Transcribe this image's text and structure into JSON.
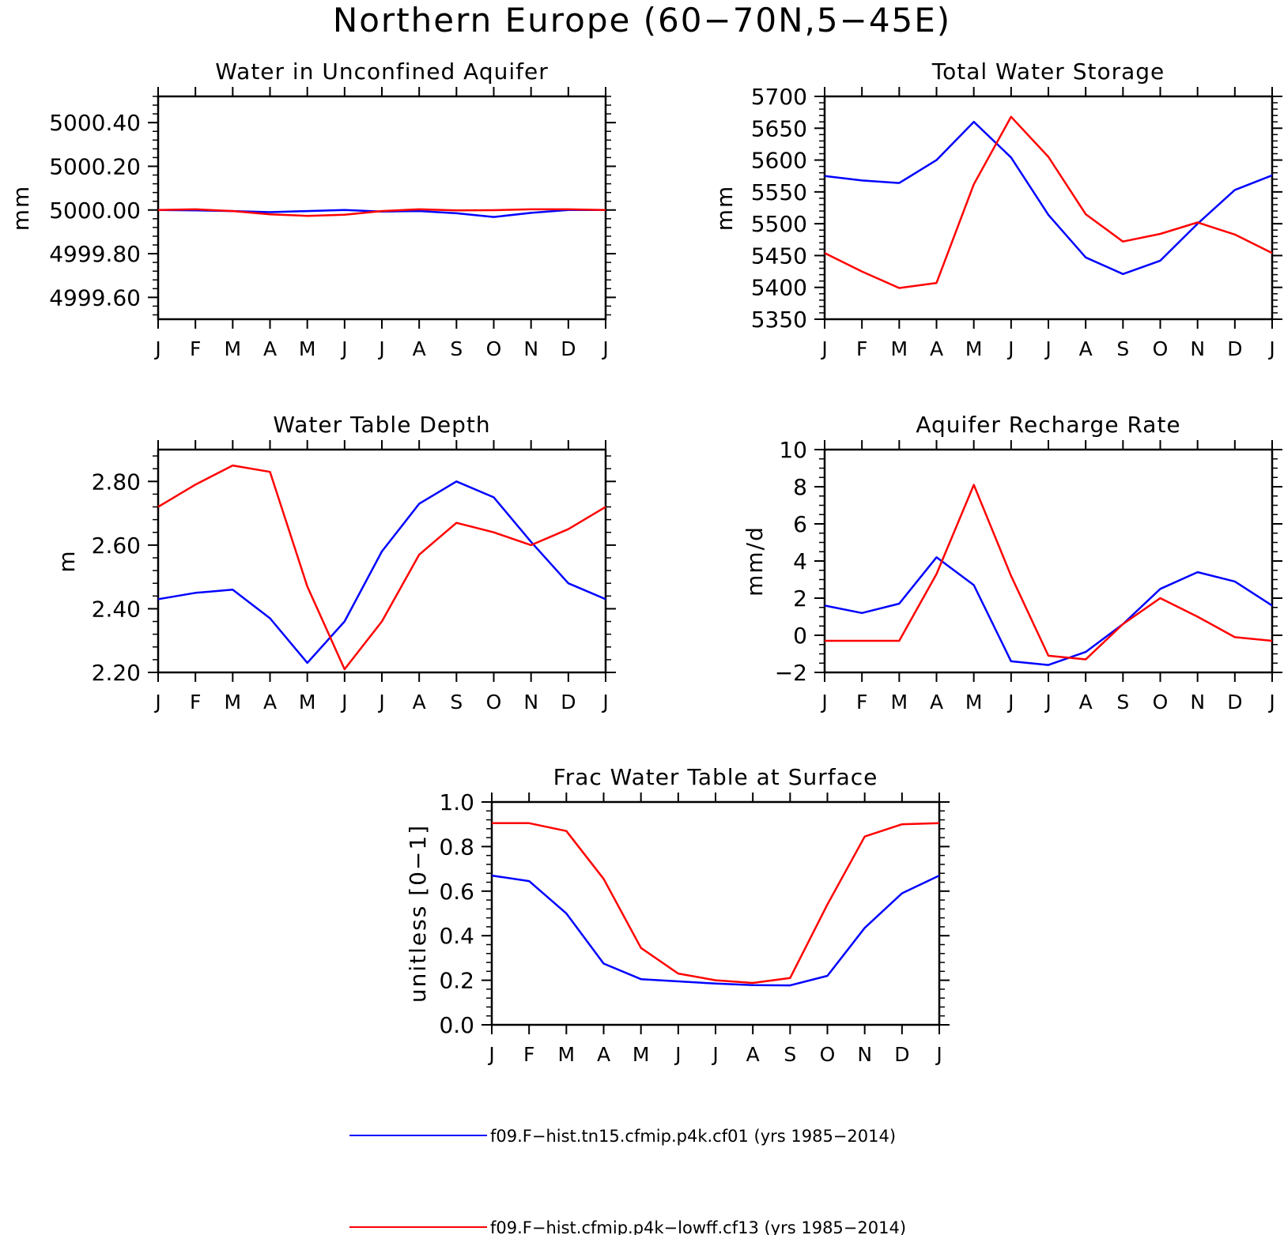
{
  "figure": {
    "title": "Northern Europe (60−70N,5−45E)"
  },
  "colors": {
    "series1": "#0000ff",
    "series2": "#ff0000",
    "axis": "#000000"
  },
  "legend": [
    {
      "label": "f09.F−hist.tn15.cfmip.p4k.cf01 (yrs 1985−2014)",
      "color": "#0000ff"
    },
    {
      "label": "f09.F−hist.cfmip.p4k−lowff.cf13 (yrs 1985−2014)",
      "color": "#ff0000"
    }
  ],
  "chart_data": [
    {
      "type": "line",
      "title": "Water in Unconfined Aquifer",
      "ylabel": "mm",
      "xlabel": "",
      "categories": [
        "J",
        "F",
        "M",
        "A",
        "M",
        "J",
        "J",
        "A",
        "S",
        "O",
        "N",
        "D",
        "J"
      ],
      "ylim": [
        4999.5,
        5000.52
      ],
      "yticks": [
        "5000.40",
        "5000.20",
        "5000.00",
        "4999.80",
        "4999.60"
      ],
      "ytick_values": [
        5000.4,
        5000.2,
        5000.0,
        4999.8,
        4999.6
      ],
      "series": [
        {
          "color": "#0000ff",
          "values": [
            5000.0,
            4999.998,
            4999.995,
            4999.99,
            4999.995,
            5000.0,
            4999.993,
            4999.995,
            4999.985,
            4999.968,
            4999.987,
            5000.0,
            5000.0
          ]
        },
        {
          "color": "#ff0000",
          "values": [
            5000.0,
            5000.003,
            4999.995,
            4999.98,
            4999.973,
            4999.978,
            4999.995,
            5000.003,
            4999.998,
            4999.999,
            5000.003,
            5000.003,
            5000.0
          ]
        }
      ]
    },
    {
      "type": "line",
      "title": "Total Water Storage",
      "ylabel": "mm",
      "xlabel": "",
      "categories": [
        "J",
        "F",
        "M",
        "A",
        "M",
        "J",
        "J",
        "A",
        "S",
        "O",
        "N",
        "D",
        "J"
      ],
      "ylim": [
        5350,
        5700
      ],
      "yticks": [
        "5700",
        "5650",
        "5600",
        "5550",
        "5500",
        "5450",
        "5400",
        "5350"
      ],
      "ytick_values": [
        5700,
        5650,
        5600,
        5550,
        5500,
        5450,
        5400,
        5350
      ],
      "series": [
        {
          "color": "#0000ff",
          "values": [
            5575,
            5568,
            5564,
            5600,
            5660,
            5604,
            5514,
            5447,
            5421,
            5442,
            5500,
            5553,
            5576
          ]
        },
        {
          "color": "#ff0000",
          "values": [
            5454,
            5425,
            5399,
            5407,
            5562,
            5668,
            5605,
            5515,
            5472,
            5484,
            5502,
            5483,
            5454
          ]
        }
      ]
    },
    {
      "type": "line",
      "title": "Water Table Depth",
      "ylabel": "m",
      "xlabel": "",
      "categories": [
        "J",
        "F",
        "M",
        "A",
        "M",
        "J",
        "J",
        "A",
        "S",
        "O",
        "N",
        "D",
        "J"
      ],
      "ylim": [
        2.2,
        2.9
      ],
      "yticks": [
        "2.80",
        "2.60",
        "2.40",
        "2.20"
      ],
      "ytick_values": [
        2.8,
        2.6,
        2.4,
        2.2
      ],
      "series": [
        {
          "color": "#0000ff",
          "values": [
            2.43,
            2.45,
            2.46,
            2.37,
            2.23,
            2.36,
            2.58,
            2.73,
            2.8,
            2.75,
            2.61,
            2.48,
            2.43
          ]
        },
        {
          "color": "#ff0000",
          "values": [
            2.72,
            2.79,
            2.85,
            2.83,
            2.47,
            2.21,
            2.36,
            2.57,
            2.67,
            2.64,
            2.6,
            2.65,
            2.72
          ]
        }
      ]
    },
    {
      "type": "line",
      "title": "Aquifer Recharge Rate",
      "ylabel": "mm/d",
      "xlabel": "",
      "categories": [
        "J",
        "F",
        "M",
        "A",
        "M",
        "J",
        "J",
        "A",
        "S",
        "O",
        "N",
        "D",
        "J"
      ],
      "ylim": [
        -2,
        10
      ],
      "yticks": [
        "10",
        "8",
        "6",
        "4",
        "2",
        "0",
        "−2"
      ],
      "ytick_values": [
        10,
        8,
        6,
        4,
        2,
        0,
        -2
      ],
      "series": [
        {
          "color": "#0000ff",
          "values": [
            1.6,
            1.2,
            1.7,
            4.2,
            2.7,
            -1.4,
            -1.6,
            -0.9,
            0.6,
            2.5,
            3.4,
            2.9,
            1.6
          ]
        },
        {
          "color": "#ff0000",
          "values": [
            -0.3,
            -0.3,
            -0.3,
            3.3,
            8.1,
            3.2,
            -1.1,
            -1.3,
            0.6,
            2.0,
            1.0,
            -0.1,
            -0.3
          ]
        }
      ]
    },
    {
      "type": "line",
      "title": "Frac Water Table at Surface",
      "ylabel": "unitless [0−1]",
      "xlabel": "",
      "categories": [
        "J",
        "F",
        "M",
        "A",
        "M",
        "J",
        "J",
        "A",
        "S",
        "O",
        "N",
        "D",
        "J"
      ],
      "ylim": [
        0,
        1
      ],
      "yticks": [
        "1.0",
        "0.8",
        "0.6",
        "0.4",
        "0.2",
        "0.0"
      ],
      "ytick_values": [
        1.0,
        0.8,
        0.6,
        0.4,
        0.2,
        0.0
      ],
      "series": [
        {
          "color": "#0000ff",
          "values": [
            0.67,
            0.645,
            0.5,
            0.275,
            0.205,
            0.195,
            0.185,
            0.178,
            0.177,
            0.22,
            0.435,
            0.59,
            0.67
          ]
        },
        {
          "color": "#ff0000",
          "values": [
            0.905,
            0.905,
            0.87,
            0.655,
            0.345,
            0.23,
            0.2,
            0.188,
            0.21,
            0.54,
            0.845,
            0.9,
            0.905
          ]
        }
      ]
    }
  ]
}
